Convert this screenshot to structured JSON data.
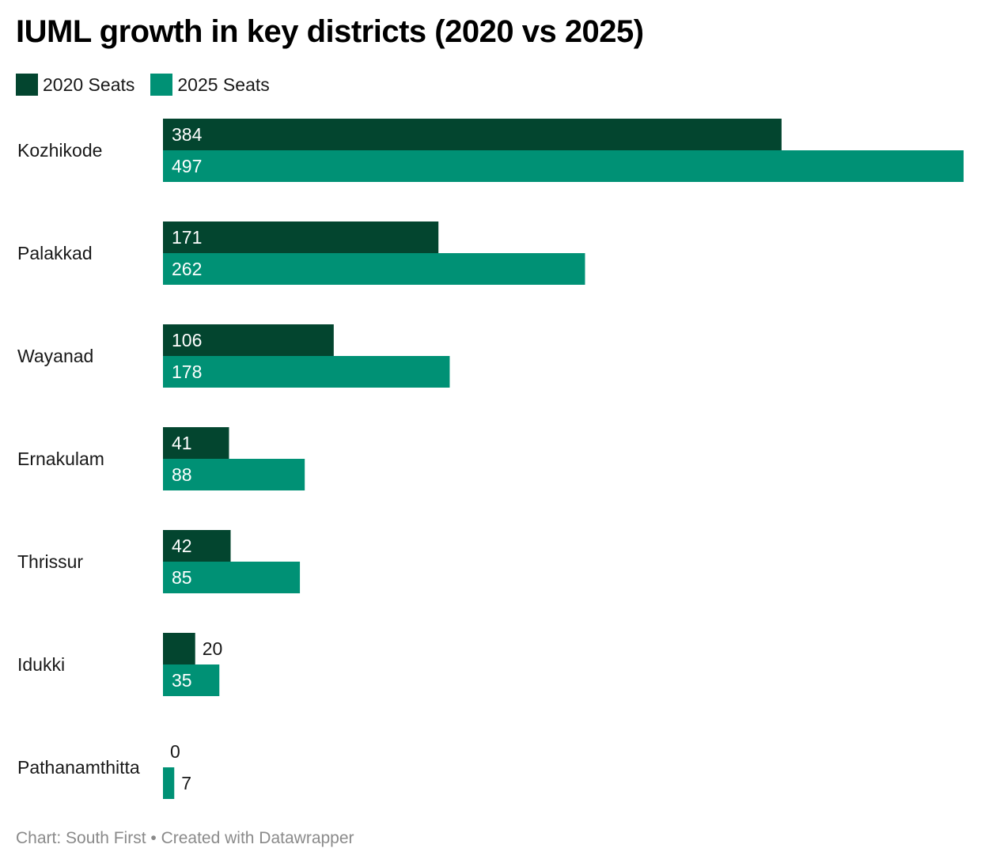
{
  "chart_data": {
    "type": "bar",
    "orientation": "horizontal",
    "title": "IUML growth in key districts (2020 vs 2025)",
    "xlabel": "",
    "ylabel": "",
    "grid": false,
    "legend_position": "top-left",
    "xlim": [
      0,
      497
    ],
    "categories": [
      "Kozhikode",
      "Palakkad",
      "Wayanad",
      "Ernakulam",
      "Thrissur",
      "Idukki",
      "Pathanamthitta"
    ],
    "series": [
      {
        "name": "2020 Seats",
        "color": "#03452f",
        "values": [
          384,
          171,
          106,
          41,
          42,
          20,
          0
        ]
      },
      {
        "name": "2025 Seats",
        "color": "#009175",
        "values": [
          497,
          262,
          178,
          88,
          85,
          35,
          7
        ]
      }
    ]
  },
  "footer": "Chart: South First • Created with Datawrapper"
}
